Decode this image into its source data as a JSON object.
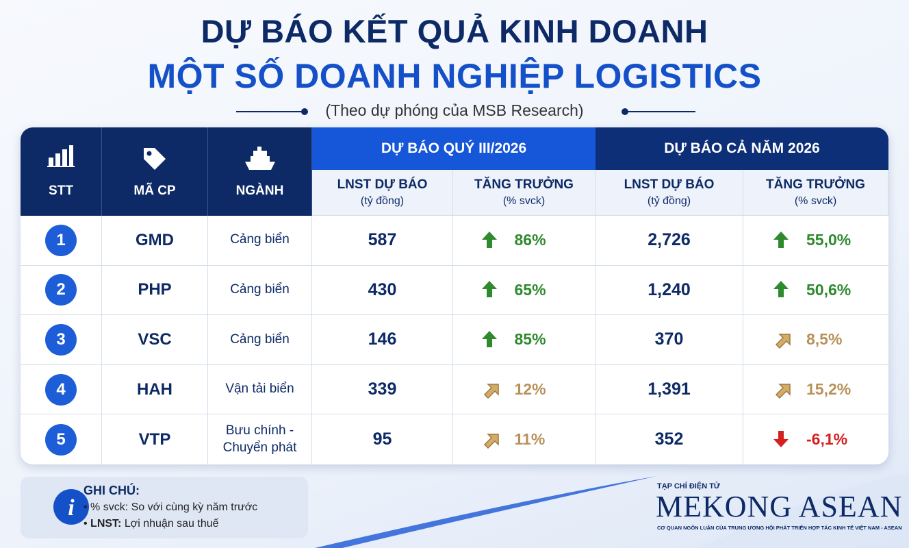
{
  "header": {
    "title_line1": "DỰ BÁO KẾT QUẢ KINH DOANH",
    "title_line2": "MỘT SỐ DOANH NGHIỆP LOGISTICS",
    "subtitle": "(Theo dự phóng của MSB Research)"
  },
  "table": {
    "columns": [
      "STT",
      "MÃ CP",
      "NGÀNH"
    ],
    "groups": [
      "DỰ BÁO QUÝ III/2026",
      "DỰ BÁO CẢ NĂM 2026"
    ],
    "subheaders": [
      {
        "title": "LNST DỰ BÁO",
        "unit": "(tỷ đồng)"
      },
      {
        "title": "TĂNG TRƯỞNG",
        "unit": "(% svck)"
      },
      {
        "title": "LNST DỰ BÁO",
        "unit": "(tỷ đồng)"
      },
      {
        "title": "TĂNG TRƯỞNG",
        "unit": "(% svck)"
      }
    ],
    "rows": [
      {
        "stt": 1,
        "ticker": "GMD",
        "sector": "Cảng biển",
        "q3_profit": "587",
        "q3_growth": "86%",
        "q3_trend": "up",
        "year_profit": "2,726",
        "year_growth": "55,0%",
        "year_trend": "up"
      },
      {
        "stt": 2,
        "ticker": "PHP",
        "sector": "Cảng biển",
        "q3_profit": "430",
        "q3_growth": "65%",
        "q3_trend": "up",
        "year_profit": "1,240",
        "year_growth": "50,6%",
        "year_trend": "up"
      },
      {
        "stt": 3,
        "ticker": "VSC",
        "sector": "Cảng biển",
        "q3_profit": "146",
        "q3_growth": "85%",
        "q3_trend": "up",
        "year_profit": "370",
        "year_growth": "8,5%",
        "year_trend": "diag"
      },
      {
        "stt": 4,
        "ticker": "HAH",
        "sector": "Vận tải biển",
        "q3_profit": "339",
        "q3_growth": "12%",
        "q3_trend": "diag",
        "year_profit": "1,391",
        "year_growth": "15,2%",
        "year_trend": "diag"
      },
      {
        "stt": 5,
        "ticker": "VTP",
        "sector": "Bưu chính - Chuyển phát",
        "q3_profit": "95",
        "q3_growth": "11%",
        "q3_trend": "diag",
        "year_profit": "352",
        "year_growth": "-6,1%",
        "year_trend": "down"
      }
    ]
  },
  "note": {
    "title": "GHI CHÚ:",
    "items": [
      {
        "term": "% svck:",
        "text": "So với cùng kỳ năm trước"
      },
      {
        "term": "LNST:",
        "text": "Lợi nhuận sau thuế"
      }
    ]
  },
  "logo": {
    "kicker": "TẠP CHÍ ĐIỆN TỬ",
    "name": "MEKONG ASEAN",
    "tagline": "CƠ QUAN NGÔN LUẬN CỦA TRUNG ƯƠNG HỘI PHÁT TRIỂN HỢP TÁC KINH TẾ VIỆT NAM - ASEAN"
  }
}
